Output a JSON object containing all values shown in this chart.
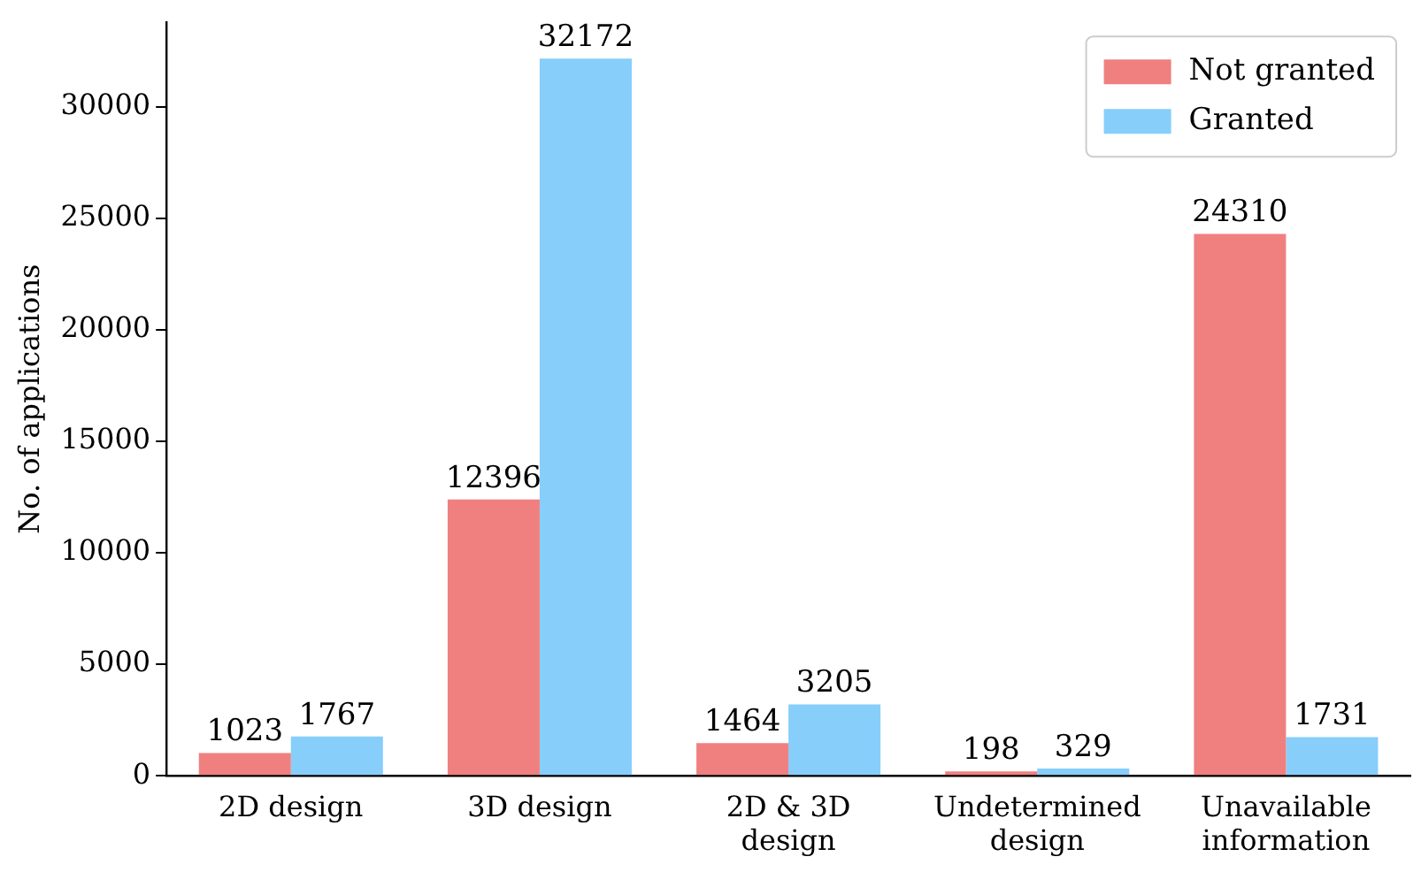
{
  "chart_data": {
    "type": "bar",
    "ylabel": "No. of applications",
    "categories": [
      "2D design",
      "3D design",
      "2D & 3D design",
      "Undetermined design",
      "Unavailable information"
    ],
    "series": [
      {
        "name": "Not granted",
        "color": "#f08080",
        "values": [
          1023,
          12396,
          1464,
          198,
          24310
        ]
      },
      {
        "name": "Granted",
        "color": "#87cefa",
        "values": [
          1767,
          32172,
          3205,
          329,
          1731
        ]
      }
    ],
    "ylim": [
      0,
      33800
    ],
    "yticks": [
      0,
      5000,
      10000,
      15000,
      20000,
      25000,
      30000
    ],
    "data_labels": true,
    "grid": false,
    "legend": "top right"
  }
}
